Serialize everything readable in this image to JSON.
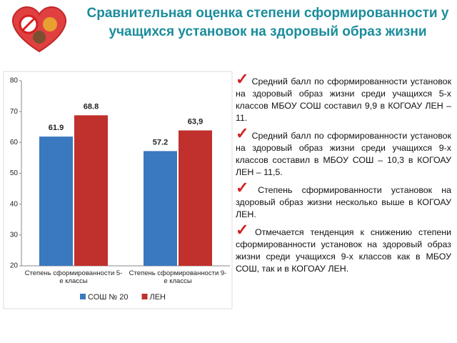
{
  "title": "Сравнительная оценка степени сформированности  у учащихся установок на здоровый образ жизни",
  "bullets": [
    "Средний балл по сформированности установок на здоровый образ жизни среди учащихся 5-х классов МБОУ СОШ составил 9,9 в КОГОАУ ЛЕН – 11.",
    "Средний балл по сформированности установок на здоровый образ жизни среди учащихся 9-х классов составил в МБОУ СОШ – 10,3 в КОГОАУ ЛЕН – 11,5.",
    "Степень сформированности установок на здоровый образ жизни несколько выше в КОГОАУ ЛЕН.",
    "Отмечается тенденция к снижению степени сформированности установок на здоровый образ жизни среди учащихся 9-х классов как в МБОУ СОШ, так и в КОГОАУ ЛЕН."
  ],
  "chart_data": {
    "type": "bar",
    "categories": [
      "Степень сформированности 5-е классы",
      "Степень сформированности 9-е классы"
    ],
    "series": [
      {
        "name": "СОШ № 20",
        "color": "#3a78c0",
        "values": [
          61.9,
          57.2
        ]
      },
      {
        "name": "ЛЕН",
        "color": "#c0302c",
        "values": [
          68.8,
          63.9
        ],
        "value_labels": [
          "68.8",
          "63,9"
        ]
      }
    ],
    "ylim": [
      20,
      80
    ],
    "yticks": [
      20,
      30,
      40,
      50,
      60,
      70,
      80
    ],
    "grid": false,
    "legend": "bottom"
  }
}
